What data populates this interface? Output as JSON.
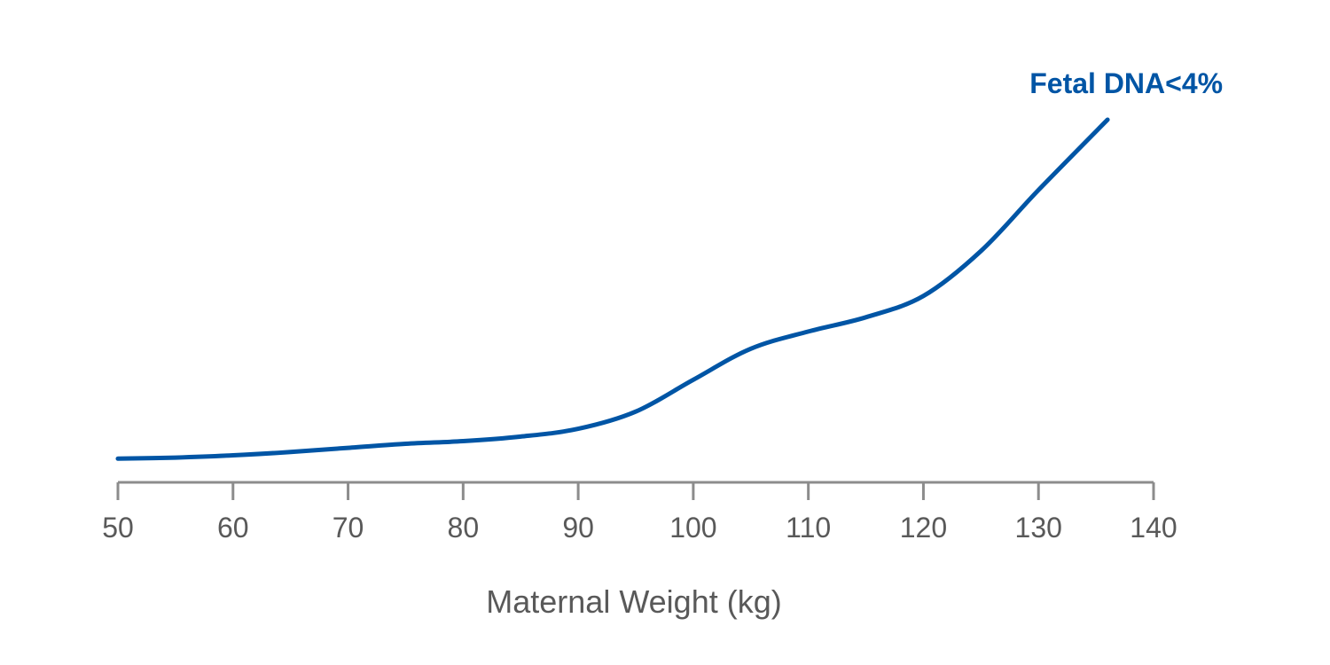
{
  "chart_data": {
    "type": "line",
    "title": "",
    "xlabel": "Maternal Weight (kg)",
    "ylabel": "",
    "xlim": [
      50,
      140
    ],
    "ylim": [
      0,
      100
    ],
    "xticks": [
      50,
      60,
      70,
      80,
      90,
      100,
      110,
      120,
      130,
      140
    ],
    "grid": false,
    "series": [
      {
        "name": "Fetal DNA<4%",
        "color": "#0055a5",
        "points": [
          [
            50,
            3.0
          ],
          [
            55,
            3.3
          ],
          [
            60,
            3.9
          ],
          [
            65,
            4.8
          ],
          [
            70,
            5.9
          ],
          [
            75,
            7.0
          ],
          [
            80,
            7.7
          ],
          [
            85,
            8.9
          ],
          [
            90,
            11.0
          ],
          [
            95,
            15.6
          ],
          [
            100,
            24.1
          ],
          [
            105,
            32.4
          ],
          [
            110,
            37.0
          ],
          [
            115,
            40.8
          ],
          [
            120,
            46.5
          ],
          [
            125,
            58.5
          ],
          [
            130,
            74.8
          ],
          [
            136,
            93.6
          ]
        ]
      }
    ]
  }
}
